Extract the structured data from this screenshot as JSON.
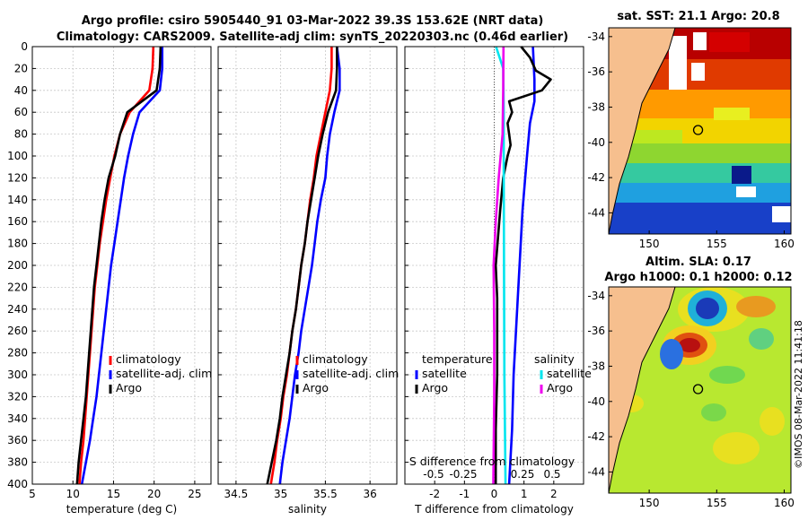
{
  "titles": {
    "line1": "Argo profile: csiro 5905440_91 03-Mar-2022 39.3S 153.62E (NRT data)",
    "line2": "Climatology: CARS2009. Satellite-adj clim: synTS_20220303.nc (0.46d earlier)",
    "sst": "sat. SST: 21.1 Argo: 20.8",
    "sla1": "Altim. SLA: 0.17",
    "sla2": "Argo h1000: 0.1 h2000: 0.12"
  },
  "side_label": "©IMOS 08-Mar-2022 11:41:18",
  "colors": {
    "clim": "#ff0000",
    "sat": "#0000ff",
    "argo": "#000000",
    "sat_s": "#00e5ee",
    "argo_s": "#ee00ee"
  },
  "legend_profile": {
    "clim": "climatology",
    "sat": "satellite-adj. clim",
    "argo": "Argo"
  },
  "legend_diff": {
    "temp_head": "temperature",
    "sal_head": "salinity",
    "sat": "satellite",
    "argo": "Argo",
    "s_axis_label": "S difference from climatology",
    "s_ticks": [
      "-0.5",
      "-0.25",
      "0.25",
      "0.5"
    ]
  },
  "chart_data": [
    {
      "type": "line",
      "name": "temperature",
      "xlabel": "temperature (deg C)",
      "ylabel": "",
      "xlim": [
        5,
        27
      ],
      "ylim": [
        400,
        0
      ],
      "xticks": [
        5,
        10,
        15,
        20,
        25
      ],
      "yticks": [
        0,
        20,
        40,
        60,
        80,
        100,
        120,
        140,
        160,
        180,
        200,
        220,
        240,
        260,
        280,
        300,
        320,
        340,
        360,
        380,
        400
      ],
      "series": [
        {
          "name": "climatology",
          "key": "clim",
          "points": [
            [
              19.9,
              0
            ],
            [
              19.8,
              20
            ],
            [
              19.4,
              40
            ],
            [
              17,
              60
            ],
            [
              15.8,
              80
            ],
            [
              15.1,
              100
            ],
            [
              14.6,
              120
            ],
            [
              14.1,
              140
            ],
            [
              13.7,
              160
            ],
            [
              13.3,
              180
            ],
            [
              13,
              200
            ],
            [
              12.7,
              220
            ],
            [
              12.5,
              240
            ],
            [
              12.3,
              260
            ],
            [
              12.1,
              280
            ],
            [
              11.9,
              300
            ],
            [
              11.7,
              320
            ],
            [
              11.5,
              340
            ],
            [
              11.3,
              360
            ],
            [
              11,
              380
            ],
            [
              10.8,
              400
            ]
          ]
        },
        {
          "name": "satellite-adj. clim",
          "key": "sat",
          "points": [
            [
              21,
              0
            ],
            [
              21,
              20
            ],
            [
              20.7,
              40
            ],
            [
              18.2,
              60
            ],
            [
              17.4,
              80
            ],
            [
              16.8,
              100
            ],
            [
              16.3,
              120
            ],
            [
              15.9,
              140
            ],
            [
              15.5,
              160
            ],
            [
              15.1,
              180
            ],
            [
              14.7,
              200
            ],
            [
              14.4,
              220
            ],
            [
              14.1,
              240
            ],
            [
              13.8,
              260
            ],
            [
              13.5,
              280
            ],
            [
              13.2,
              300
            ],
            [
              12.9,
              320
            ],
            [
              12.5,
              340
            ],
            [
              12.1,
              360
            ],
            [
              11.6,
              380
            ],
            [
              11.1,
              400
            ]
          ]
        },
        {
          "name": "Argo",
          "key": "argo",
          "points": [
            [
              20.8,
              0
            ],
            [
              20.7,
              20
            ],
            [
              20.3,
              40
            ],
            [
              16.7,
              60
            ],
            [
              15.8,
              80
            ],
            [
              15.2,
              100
            ],
            [
              14.4,
              120
            ],
            [
              13.9,
              140
            ],
            [
              13.5,
              160
            ],
            [
              13.2,
              180
            ],
            [
              12.9,
              200
            ],
            [
              12.6,
              220
            ],
            [
              12.4,
              240
            ],
            [
              12.2,
              260
            ],
            [
              12,
              280
            ],
            [
              11.8,
              300
            ],
            [
              11.6,
              320
            ],
            [
              11.3,
              340
            ],
            [
              11,
              360
            ],
            [
              10.7,
              380
            ],
            [
              10.5,
              400
            ]
          ]
        }
      ]
    },
    {
      "type": "line",
      "name": "salinity",
      "xlabel": "salinity",
      "ylabel": "",
      "xlim": [
        34.3,
        36.3
      ],
      "ylim": [
        400,
        0
      ],
      "xticks": [
        34.5,
        35,
        35.5,
        36
      ],
      "series": [
        {
          "name": "climatology",
          "key": "clim",
          "points": [
            [
              35.57,
              0
            ],
            [
              35.57,
              20
            ],
            [
              35.55,
              40
            ],
            [
              35.5,
              60
            ],
            [
              35.45,
              80
            ],
            [
              35.4,
              100
            ],
            [
              35.37,
              120
            ],
            [
              35.33,
              140
            ],
            [
              35.3,
              160
            ],
            [
              35.27,
              180
            ],
            [
              35.23,
              200
            ],
            [
              35.2,
              220
            ],
            [
              35.17,
              240
            ],
            [
              35.13,
              260
            ],
            [
              35.1,
              280
            ],
            [
              35.07,
              300
            ],
            [
              35.03,
              320
            ],
            [
              35,
              340
            ],
            [
              34.96,
              360
            ],
            [
              34.93,
              380
            ],
            [
              34.89,
              400
            ]
          ]
        },
        {
          "name": "satellite-adj. clim",
          "key": "sat",
          "points": [
            [
              35.63,
              0
            ],
            [
              35.66,
              20
            ],
            [
              35.66,
              40
            ],
            [
              35.6,
              60
            ],
            [
              35.55,
              80
            ],
            [
              35.52,
              100
            ],
            [
              35.5,
              120
            ],
            [
              35.45,
              140
            ],
            [
              35.41,
              160
            ],
            [
              35.38,
              180
            ],
            [
              35.35,
              200
            ],
            [
              35.31,
              220
            ],
            [
              35.27,
              240
            ],
            [
              35.23,
              260
            ],
            [
              35.2,
              280
            ],
            [
              35.16,
              300
            ],
            [
              35.13,
              320
            ],
            [
              35.1,
              340
            ],
            [
              35.06,
              360
            ],
            [
              35.02,
              380
            ],
            [
              34.99,
              400
            ]
          ]
        },
        {
          "name": "Argo",
          "key": "argo",
          "points": [
            [
              35.63,
              0
            ],
            [
              35.63,
              20
            ],
            [
              35.62,
              40
            ],
            [
              35.53,
              60
            ],
            [
              35.47,
              80
            ],
            [
              35.42,
              100
            ],
            [
              35.38,
              120
            ],
            [
              35.34,
              140
            ],
            [
              35.3,
              160
            ],
            [
              35.27,
              180
            ],
            [
              35.23,
              200
            ],
            [
              35.2,
              220
            ],
            [
              35.17,
              240
            ],
            [
              35.13,
              260
            ],
            [
              35.1,
              280
            ],
            [
              35.06,
              300
            ],
            [
              35.02,
              320
            ],
            [
              34.99,
              340
            ],
            [
              34.95,
              360
            ],
            [
              34.9,
              380
            ],
            [
              34.85,
              400
            ]
          ]
        }
      ]
    },
    {
      "type": "line",
      "name": "T difference",
      "xlabel": "T difference from climatology",
      "ylabel": "",
      "xlim": [
        -3,
        3
      ],
      "ylim": [
        400,
        0
      ],
      "xticks": [
        -2,
        -1,
        0,
        1,
        2
      ],
      "series": [
        {
          "name": "temperature satellite",
          "key": "sat",
          "points": [
            [
              1.3,
              0
            ],
            [
              1.35,
              30
            ],
            [
              1.35,
              50
            ],
            [
              1.2,
              70
            ],
            [
              1.1,
              100
            ],
            [
              0.95,
              150
            ],
            [
              0.85,
              200
            ],
            [
              0.75,
              250
            ],
            [
              0.65,
              300
            ],
            [
              0.6,
              350
            ],
            [
              0.5,
              400
            ]
          ]
        },
        {
          "name": "temperature Argo",
          "key": "argo",
          "points": [
            [
              0.9,
              0
            ],
            [
              1.2,
              10
            ],
            [
              1.4,
              22
            ],
            [
              1.9,
              30
            ],
            [
              1.6,
              40
            ],
            [
              0.5,
              50
            ],
            [
              0.6,
              60
            ],
            [
              0.45,
              70
            ],
            [
              0.5,
              80
            ],
            [
              0.55,
              90
            ],
            [
              0.45,
              100
            ],
            [
              0.3,
              120
            ],
            [
              0.2,
              150
            ],
            [
              0.05,
              200
            ],
            [
              0.1,
              230
            ],
            [
              0.1,
              250
            ],
            [
              0.1,
              270
            ],
            [
              0.1,
              300
            ],
            [
              0.05,
              350
            ],
            [
              0.05,
              400
            ]
          ]
        },
        {
          "name": "salinity satellite",
          "key": "sat_s",
          "points": [
            [
              0.06,
              0
            ],
            [
              0.3,
              20
            ],
            [
              0.32,
              60
            ],
            [
              0.32,
              120
            ],
            [
              0.33,
              200
            ],
            [
              0.34,
              300
            ],
            [
              0.38,
              400
            ]
          ]
        },
        {
          "name": "salinity Argo",
          "key": "argo_s",
          "points": [
            [
              0.31,
              0
            ],
            [
              0.3,
              40
            ],
            [
              0.28,
              80
            ],
            [
              0.15,
              120
            ],
            [
              0.05,
              160
            ],
            [
              -0.02,
              200
            ],
            [
              0,
              260
            ],
            [
              0,
              320
            ],
            [
              -0.03,
              400
            ]
          ]
        }
      ]
    }
  ],
  "maps": [
    {
      "name": "SST",
      "xticks": [
        150,
        155,
        160
      ],
      "yticks": [
        -34,
        -36,
        -38,
        -40,
        -42,
        -44
      ],
      "float_lon": 153.62,
      "float_lat": -39.3
    },
    {
      "name": "SLA",
      "xticks": [
        150,
        155,
        160
      ],
      "yticks": [
        -34,
        -36,
        -38,
        -40,
        -42,
        -44
      ],
      "float_lon": 153.62,
      "float_lat": -39.3
    }
  ]
}
